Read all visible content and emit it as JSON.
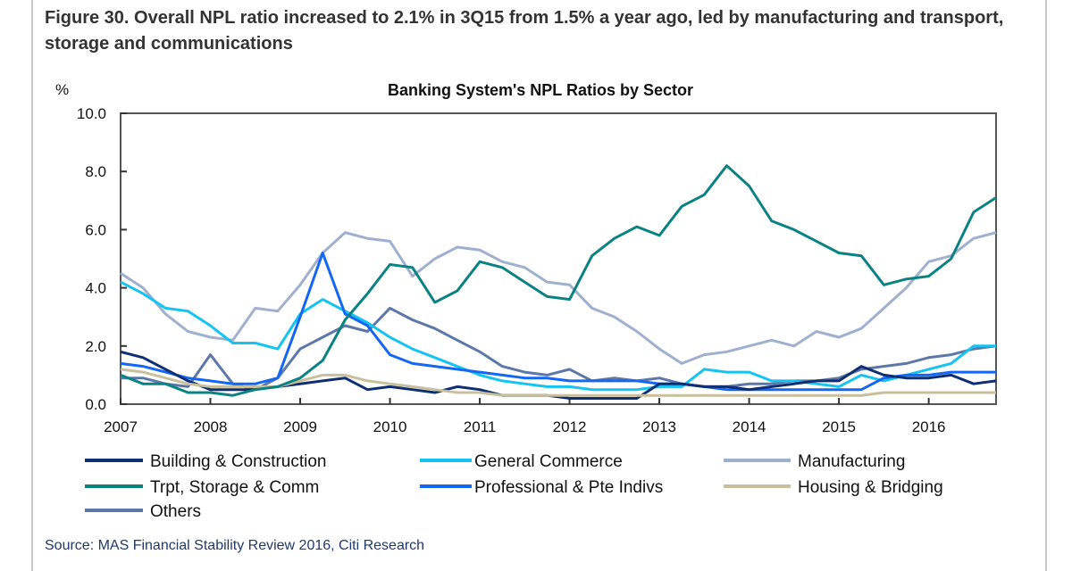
{
  "figure_title": "Figure 30. Overall NPL ratio increased to 2.1% in 3Q15 from 1.5% a year ago, led by manufacturing and transport, storage and communications",
  "source": "Source: MAS Financial Stability Review 2016, Citi Research",
  "chart_data": {
    "type": "line",
    "title": "Banking System's NPL Ratios by Sector",
    "ylabel": "%",
    "xlabel": "",
    "ylim": [
      0,
      10
    ],
    "yticks": [
      "0.0",
      "2.0",
      "4.0",
      "6.0",
      "8.0",
      "10.0"
    ],
    "xticks": [
      "2007",
      "2008",
      "2009",
      "2010",
      "2011",
      "2012",
      "2013",
      "2014",
      "2015",
      "2016"
    ],
    "x_start": 2007,
    "x_step": 0.25,
    "grid": false,
    "legend": "bottom",
    "series": [
      {
        "name": "Building & Construction",
        "color": "#0f2f73",
        "values": [
          1.8,
          1.6,
          1.2,
          0.8,
          0.5,
          0.5,
          0.5,
          0.6,
          0.7,
          0.8,
          0.9,
          0.5,
          0.6,
          0.5,
          0.4,
          0.6,
          0.5,
          0.3,
          0.3,
          0.3,
          0.2,
          0.2,
          0.2,
          0.2,
          0.7,
          0.7,
          0.6,
          0.6,
          0.5,
          0.6,
          0.7,
          0.8,
          0.8,
          1.3,
          1.0,
          0.9,
          0.9,
          1.0,
          0.7,
          0.8
        ]
      },
      {
        "name": "General Commerce",
        "color": "#15c3f0",
        "values": [
          4.2,
          3.8,
          3.3,
          3.2,
          2.7,
          2.1,
          2.1,
          1.9,
          3.1,
          3.6,
          3.2,
          2.8,
          2.3,
          1.9,
          1.6,
          1.3,
          1.0,
          0.8,
          0.7,
          0.6,
          0.6,
          0.5,
          0.5,
          0.5,
          0.6,
          0.6,
          1.2,
          1.1,
          1.1,
          0.8,
          0.8,
          0.7,
          0.6,
          1.0,
          0.8,
          1.0,
          1.2,
          1.4,
          2.0,
          2.0
        ]
      },
      {
        "name": "Manufacturing",
        "color": "#9fb0cf",
        "values": [
          4.5,
          4.0,
          3.1,
          2.5,
          2.3,
          2.2,
          3.3,
          3.2,
          4.1,
          5.2,
          5.9,
          5.7,
          5.6,
          4.4,
          5.0,
          5.4,
          5.3,
          4.9,
          4.7,
          4.2,
          4.1,
          3.3,
          3.0,
          2.5,
          1.9,
          1.4,
          1.7,
          1.8,
          2.0,
          2.2,
          2.0,
          2.5,
          2.3,
          2.6,
          3.3,
          4.0,
          4.9,
          5.1,
          5.7,
          5.9
        ]
      },
      {
        "name": "Trpt, Storage & Comm",
        "color": "#0a8282",
        "values": [
          1.0,
          0.7,
          0.7,
          0.4,
          0.4,
          0.3,
          0.5,
          0.6,
          0.9,
          1.5,
          2.9,
          3.8,
          4.8,
          4.7,
          3.5,
          3.9,
          4.9,
          4.7,
          4.2,
          3.7,
          3.6,
          5.1,
          5.7,
          6.1,
          5.8,
          6.8,
          7.2,
          8.2,
          7.5,
          6.3,
          6.0,
          5.6,
          5.2,
          5.1,
          4.1,
          4.3,
          4.4,
          5.0,
          6.6,
          7.1
        ]
      },
      {
        "name": "Professional & Pte Indivs",
        "color": "#1466f5",
        "values": [
          1.4,
          1.3,
          1.1,
          0.9,
          0.8,
          0.7,
          0.7,
          0.9,
          3.0,
          5.2,
          3.1,
          2.7,
          1.7,
          1.4,
          1.3,
          1.2,
          1.1,
          1.0,
          0.9,
          0.9,
          0.8,
          0.8,
          0.8,
          0.8,
          0.7,
          0.7,
          0.6,
          0.5,
          0.5,
          0.5,
          0.5,
          0.5,
          0.5,
          0.5,
          0.9,
          1.0,
          1.0,
          1.1,
          1.1,
          1.1
        ]
      },
      {
        "name": "Housing & Bridging",
        "color": "#c8bf9c",
        "values": [
          1.2,
          1.1,
          0.9,
          0.7,
          0.6,
          0.6,
          0.6,
          0.6,
          0.8,
          1.0,
          1.0,
          0.8,
          0.7,
          0.6,
          0.5,
          0.4,
          0.4,
          0.3,
          0.3,
          0.3,
          0.3,
          0.3,
          0.3,
          0.3,
          0.3,
          0.3,
          0.3,
          0.3,
          0.3,
          0.3,
          0.3,
          0.3,
          0.3,
          0.3,
          0.4,
          0.4,
          0.4,
          0.4,
          0.4,
          0.4
        ]
      },
      {
        "name": "Others",
        "color": "#5d78a8",
        "values": [
          0.9,
          0.9,
          0.7,
          0.6,
          1.7,
          0.7,
          0.5,
          0.9,
          1.9,
          2.3,
          2.7,
          2.5,
          3.3,
          2.9,
          2.6,
          2.2,
          1.8,
          1.3,
          1.1,
          1.0,
          1.2,
          0.8,
          0.9,
          0.8,
          0.9,
          0.7,
          0.6,
          0.6,
          0.7,
          0.7,
          0.8,
          0.8,
          0.9,
          1.2,
          1.3,
          1.4,
          1.6,
          1.7,
          1.9,
          2.0
        ]
      }
    ]
  }
}
